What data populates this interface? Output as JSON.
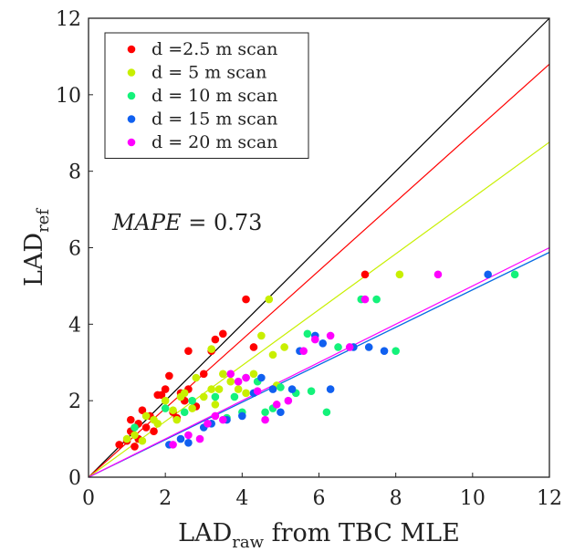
{
  "chart_data": {
    "type": "scatter",
    "xlabel": {
      "main": "LAD",
      "sub": "raw",
      "rest": " from TBC MLE"
    },
    "ylabel": {
      "main": "LAD",
      "sub": "ref"
    },
    "xlim": [
      0,
      12
    ],
    "ylim": [
      0,
      12
    ],
    "x_ticks": [
      0,
      2,
      4,
      6,
      8,
      10,
      12
    ],
    "y_ticks": [
      0,
      2,
      4,
      6,
      8,
      10,
      12
    ],
    "grid": false,
    "legend_position": "top-left",
    "annotation": {
      "label": "MAPE",
      "eq": " = ",
      "value": "0.73"
    },
    "reference_line": {
      "from": [
        0,
        0
      ],
      "to": [
        12,
        12
      ],
      "color": "#000000"
    },
    "series": [
      {
        "name": "d =2.5 m scan",
        "color": "#ff0000",
        "fit_slope": 0.9,
        "points": [
          [
            0.8,
            0.85
          ],
          [
            1.0,
            0.95
          ],
          [
            1.1,
            1.2
          ],
          [
            1.1,
            1.5
          ],
          [
            1.2,
            0.8
          ],
          [
            1.3,
            1.0
          ],
          [
            1.3,
            1.4
          ],
          [
            1.4,
            1.75
          ],
          [
            1.5,
            1.3
          ],
          [
            1.6,
            1.6
          ],
          [
            1.7,
            1.2
          ],
          [
            1.8,
            2.15
          ],
          [
            1.9,
            2.15
          ],
          [
            2.0,
            2.3
          ],
          [
            2.1,
            2.65
          ],
          [
            2.2,
            1.7
          ],
          [
            2.3,
            1.55
          ],
          [
            2.4,
            2.2
          ],
          [
            2.5,
            2.0
          ],
          [
            2.6,
            2.3
          ],
          [
            2.6,
            3.3
          ],
          [
            2.8,
            1.85
          ],
          [
            3.0,
            2.7
          ],
          [
            3.2,
            3.3
          ],
          [
            3.3,
            3.6
          ],
          [
            3.5,
            3.75
          ],
          [
            4.1,
            4.65
          ],
          [
            4.3,
            3.4
          ],
          [
            7.2,
            5.3
          ]
        ]
      },
      {
        "name": "d = 5 m scan",
        "color": "#c8ef00",
        "fit_slope": 0.73,
        "points": [
          [
            1.0,
            1.0
          ],
          [
            1.2,
            1.1
          ],
          [
            1.4,
            0.95
          ],
          [
            1.5,
            1.6
          ],
          [
            1.7,
            1.5
          ],
          [
            1.8,
            1.4
          ],
          [
            2.0,
            2.0
          ],
          [
            2.2,
            1.75
          ],
          [
            2.3,
            1.5
          ],
          [
            2.4,
            2.1
          ],
          [
            2.5,
            2.2
          ],
          [
            2.7,
            1.8
          ],
          [
            2.8,
            2.6
          ],
          [
            3.0,
            2.1
          ],
          [
            3.2,
            2.3
          ],
          [
            3.3,
            1.9
          ],
          [
            3.4,
            2.3
          ],
          [
            3.5,
            2.7
          ],
          [
            3.7,
            2.5
          ],
          [
            3.9,
            2.3
          ],
          [
            4.1,
            2.2
          ],
          [
            4.3,
            2.7
          ],
          [
            4.5,
            3.7
          ],
          [
            4.7,
            4.65
          ],
          [
            4.8,
            3.2
          ],
          [
            4.9,
            2.4
          ],
          [
            5.1,
            3.4
          ],
          [
            3.2,
            3.35
          ],
          [
            8.1,
            5.3
          ]
        ]
      },
      {
        "name": "d = 10 m scan",
        "color": "#14f27a",
        "fit_slope": 0.49,
        "points": [
          [
            1.2,
            1.3
          ],
          [
            2.0,
            1.8
          ],
          [
            2.5,
            1.7
          ],
          [
            2.7,
            2.0
          ],
          [
            3.3,
            2.1
          ],
          [
            3.6,
            1.55
          ],
          [
            3.8,
            2.1
          ],
          [
            4.0,
            1.7
          ],
          [
            4.1,
            2.6
          ],
          [
            4.4,
            2.5
          ],
          [
            4.6,
            1.7
          ],
          [
            4.8,
            1.8
          ],
          [
            5.0,
            2.35
          ],
          [
            5.4,
            2.2
          ],
          [
            5.7,
            3.75
          ],
          [
            5.8,
            2.25
          ],
          [
            6.2,
            1.7
          ],
          [
            6.5,
            3.4
          ],
          [
            7.1,
            4.65
          ],
          [
            7.5,
            4.65
          ],
          [
            8.0,
            3.3
          ],
          [
            11.1,
            5.3
          ]
        ]
      },
      {
        "name": "d = 15 m scan",
        "color": "#1060f0",
        "fit_slope": 0.49,
        "points": [
          [
            2.1,
            0.85
          ],
          [
            2.4,
            1.0
          ],
          [
            2.6,
            0.9
          ],
          [
            3.0,
            1.3
          ],
          [
            3.2,
            1.4
          ],
          [
            3.6,
            1.5
          ],
          [
            4.0,
            1.6
          ],
          [
            4.3,
            2.2
          ],
          [
            4.5,
            2.6
          ],
          [
            4.8,
            2.3
          ],
          [
            5.0,
            1.7
          ],
          [
            5.3,
            2.3
          ],
          [
            5.5,
            3.3
          ],
          [
            5.9,
            3.7
          ],
          [
            6.1,
            3.5
          ],
          [
            6.3,
            2.3
          ],
          [
            6.9,
            3.4
          ],
          [
            7.3,
            3.4
          ],
          [
            7.7,
            3.3
          ],
          [
            10.4,
            5.3
          ]
        ]
      },
      {
        "name": "d = 20 m scan",
        "color": "#ff00ff",
        "fit_slope": 0.5,
        "points": [
          [
            2.2,
            0.85
          ],
          [
            2.6,
            1.1
          ],
          [
            2.9,
            1.0
          ],
          [
            3.1,
            1.4
          ],
          [
            3.3,
            1.6
          ],
          [
            3.5,
            1.5
          ],
          [
            3.7,
            2.7
          ],
          [
            3.9,
            2.5
          ],
          [
            4.1,
            2.6
          ],
          [
            4.4,
            2.25
          ],
          [
            4.6,
            1.5
          ],
          [
            4.9,
            1.9
          ],
          [
            5.2,
            2.0
          ],
          [
            5.6,
            3.3
          ],
          [
            5.9,
            3.6
          ],
          [
            6.3,
            3.7
          ],
          [
            6.8,
            3.4
          ],
          [
            7.2,
            4.65
          ],
          [
            9.1,
            5.3
          ]
        ]
      }
    ]
  }
}
